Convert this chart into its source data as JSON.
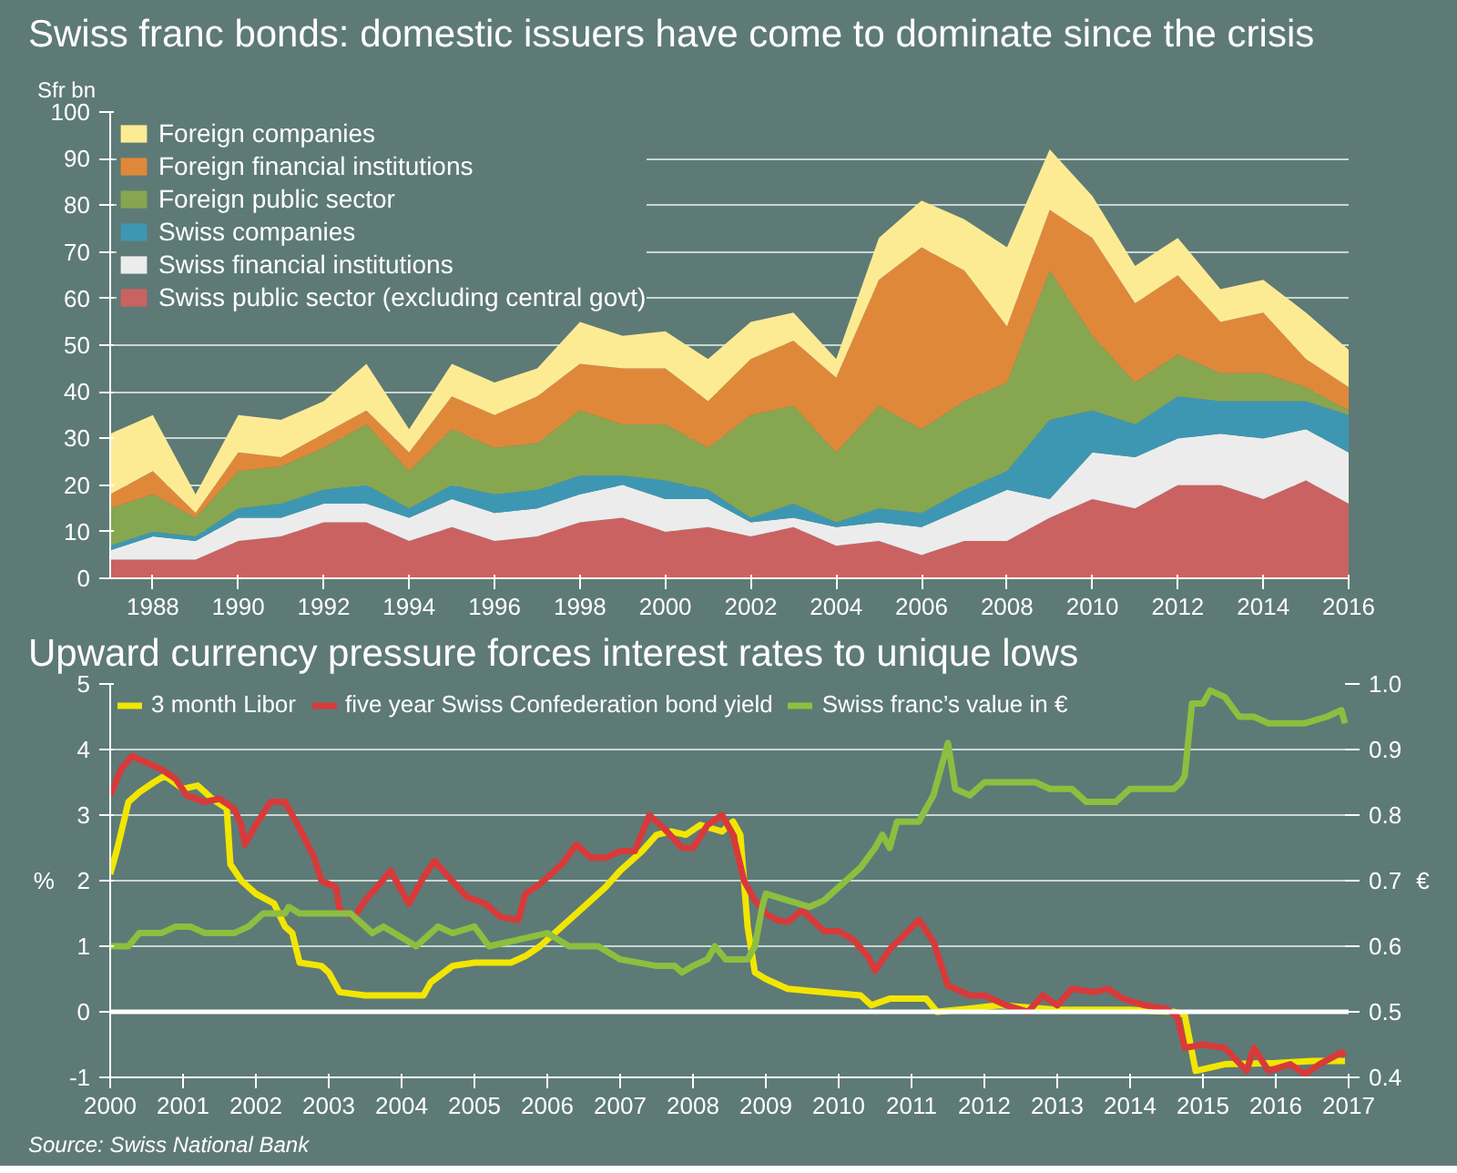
{
  "chart_data": [
    {
      "type": "area",
      "title": "Swiss franc bonds: domestic issuers have come to dominate since the crisis",
      "ylabel": "Sfr bn",
      "stacked": true,
      "x": [
        1987,
        1988,
        1989,
        1990,
        1991,
        1992,
        1993,
        1994,
        1995,
        1996,
        1997,
        1998,
        1999,
        2000,
        2001,
        2002,
        2003,
        2004,
        2005,
        2006,
        2007,
        2008,
        2009,
        2010,
        2011,
        2012,
        2013,
        2014,
        2015,
        2016
      ],
      "xlim": [
        1987,
        2016
      ],
      "xticks": [
        1988,
        1990,
        1992,
        1994,
        1996,
        1998,
        2000,
        2002,
        2004,
        2006,
        2008,
        2010,
        2012,
        2014,
        2016
      ],
      "ylim": [
        0,
        100
      ],
      "yticks": [
        0,
        10,
        20,
        30,
        40,
        50,
        60,
        70,
        80,
        90,
        100
      ],
      "grid": "y",
      "legend": "top left",
      "series": [
        {
          "name": "Swiss public sector (excluding central govt)",
          "color": "#cb6262",
          "values": [
            4,
            4,
            4,
            8,
            9,
            12,
            12,
            8,
            11,
            8,
            9,
            12,
            13,
            10,
            11,
            9,
            11,
            7,
            8,
            5,
            8,
            8,
            13,
            17,
            15,
            20,
            20,
            17,
            21,
            16
          ]
        },
        {
          "name": "Swiss financial institutions",
          "color": "#ececec",
          "values": [
            2,
            5,
            4,
            5,
            4,
            4,
            4,
            5,
            6,
            6,
            6,
            6,
            7,
            7,
            6,
            3,
            2,
            4,
            4,
            6,
            7,
            11,
            4,
            10,
            11,
            10,
            11,
            13,
            11,
            11
          ]
        },
        {
          "name": "Swiss companies",
          "color": "#3d97b3",
          "values": [
            1,
            1,
            1,
            2,
            3,
            3,
            4,
            2,
            3,
            4,
            4,
            4,
            2,
            4,
            2,
            1,
            3,
            1,
            3,
            3,
            4,
            4,
            17,
            9,
            7,
            9,
            7,
            8,
            6,
            8
          ]
        },
        {
          "name": "Foreign public sector",
          "color": "#87a650",
          "values": [
            8,
            8,
            4,
            8,
            8,
            9,
            13,
            8,
            12,
            10,
            10,
            14,
            11,
            12,
            9,
            22,
            21,
            15,
            22,
            18,
            19,
            19,
            32,
            16,
            9,
            9,
            6,
            6,
            3,
            1
          ]
        },
        {
          "name": "Foreign financial institutions",
          "color": "#e0883a",
          "values": [
            3,
            5,
            1,
            4,
            2,
            3,
            3,
            4,
            7,
            7,
            10,
            10,
            12,
            12,
            10,
            12,
            14,
            16,
            27,
            39,
            28,
            12,
            13,
            21,
            17,
            17,
            11,
            13,
            6,
            5
          ]
        },
        {
          "name": "Foreign companies",
          "color": "#fdeb94",
          "values": [
            13,
            12,
            4,
            8,
            8,
            7,
            10,
            5,
            7,
            7,
            6,
            9,
            7,
            8,
            9,
            8,
            6,
            4,
            9,
            10,
            11,
            17,
            13,
            9,
            8,
            8,
            7,
            7,
            10,
            8
          ]
        }
      ]
    },
    {
      "type": "line",
      "title": "Upward currency pressure forces interest rates to unique lows",
      "ylabel": "%",
      "y2label": "€",
      "xlim": [
        2000,
        2017
      ],
      "xticks": [
        2000,
        2001,
        2002,
        2003,
        2004,
        2005,
        2006,
        2007,
        2008,
        2009,
        2010,
        2011,
        2012,
        2013,
        2014,
        2015,
        2016,
        2017
      ],
      "ylim": [
        -1,
        5
      ],
      "yticks": [
        -1,
        0,
        1,
        2,
        3,
        4,
        5
      ],
      "y2lim": [
        0.4,
        1.0
      ],
      "y2ticks": [
        0.4,
        0.5,
        0.6,
        0.7,
        0.8,
        0.9,
        {
          "value": 1.0,
          "label": "1.0"
        }
      ],
      "grid": "y",
      "legend": "top",
      "ref_lines": [
        {
          "axis": "y",
          "value": 0,
          "color": "#ffffff"
        }
      ],
      "annotations": [
        "Source: Swiss National Bank"
      ],
      "series": [
        {
          "name": "3 month Libor",
          "color": "#f2e600",
          "x": [
            2000.0,
            2000.1,
            2000.25,
            2000.4,
            2000.6,
            2000.75,
            2001.0,
            2001.2,
            2001.4,
            2001.6,
            2001.65,
            2001.8,
            2002.0,
            2002.25,
            2002.4,
            2002.5,
            2002.6,
            2002.9,
            2003.0,
            2003.15,
            2003.5,
            2004.0,
            2004.3,
            2004.4,
            2004.7,
            2005.0,
            2005.5,
            2005.7,
            2005.9,
            2006.1,
            2006.5,
            2006.8,
            2007.0,
            2007.3,
            2007.5,
            2007.7,
            2007.9,
            2008.1,
            2008.4,
            2008.55,
            2008.65,
            2008.75,
            2008.85,
            2009.0,
            2009.3,
            2009.8,
            2010.3,
            2010.45,
            2010.7,
            2011.2,
            2011.35,
            2011.8,
            2012.2,
            2013.0,
            2014.0,
            2014.6,
            2014.75,
            2014.9,
            2015.3,
            2016.0,
            2016.5,
            2016.95
          ],
          "values": [
            2.1,
            2.5,
            3.2,
            3.35,
            3.5,
            3.6,
            3.4,
            3.45,
            3.25,
            3.1,
            2.25,
            2.0,
            1.8,
            1.65,
            1.3,
            1.2,
            0.75,
            0.7,
            0.6,
            0.3,
            0.25,
            0.25,
            0.25,
            0.45,
            0.7,
            0.75,
            0.75,
            0.85,
            1.0,
            1.2,
            1.6,
            1.9,
            2.15,
            2.45,
            2.7,
            2.75,
            2.7,
            2.85,
            2.75,
            2.9,
            2.7,
            1.3,
            0.6,
            0.5,
            0.35,
            0.3,
            0.25,
            0.1,
            0.2,
            0.2,
            0.0,
            0.05,
            0.1,
            0.03,
            0.03,
            0.0,
            -0.05,
            -0.9,
            -0.8,
            -0.78,
            -0.75,
            -0.75
          ]
        },
        {
          "name": "five year Swiss Confederation bond yield",
          "color": "#d83a3a",
          "x": [
            2000.0,
            2000.15,
            2000.3,
            2000.5,
            2000.7,
            2000.9,
            2001.05,
            2001.3,
            2001.5,
            2001.7,
            2001.8,
            2001.85,
            2002.0,
            2002.2,
            2002.4,
            2002.6,
            2002.8,
            2002.9,
            2003.1,
            2003.15,
            2003.35,
            2003.5,
            2003.7,
            2003.85,
            2004.1,
            2004.3,
            2004.45,
            2004.65,
            2004.9,
            2005.15,
            2005.35,
            2005.6,
            2005.7,
            2005.9,
            2006.2,
            2006.4,
            2006.6,
            2006.8,
            2007.0,
            2007.2,
            2007.4,
            2007.6,
            2007.85,
            2008.0,
            2008.2,
            2008.4,
            2008.55,
            2008.7,
            2008.85,
            2009.0,
            2009.15,
            2009.3,
            2009.5,
            2009.8,
            2010.0,
            2010.2,
            2010.4,
            2010.5,
            2010.7,
            2010.9,
            2011.1,
            2011.3,
            2011.5,
            2011.8,
            2012.0,
            2012.3,
            2012.6,
            2012.8,
            2013.0,
            2013.2,
            2013.5,
            2013.7,
            2013.9,
            2014.2,
            2014.5,
            2014.65,
            2014.75,
            2015.0,
            2015.3,
            2015.6,
            2015.7,
            2015.9,
            2016.2,
            2016.4,
            2016.6,
            2016.9,
            2016.95
          ],
          "values": [
            3.3,
            3.7,
            3.9,
            3.8,
            3.7,
            3.55,
            3.3,
            3.2,
            3.25,
            3.1,
            2.85,
            2.55,
            2.85,
            3.2,
            3.2,
            2.8,
            2.35,
            2.0,
            1.9,
            1.55,
            1.45,
            1.7,
            1.95,
            2.15,
            1.65,
            2.05,
            2.3,
            2.05,
            1.75,
            1.65,
            1.45,
            1.4,
            1.8,
            1.95,
            2.25,
            2.55,
            2.35,
            2.35,
            2.45,
            2.45,
            3.0,
            2.8,
            2.5,
            2.5,
            2.85,
            3.0,
            2.7,
            2.0,
            1.7,
            1.5,
            1.4,
            1.37,
            1.55,
            1.23,
            1.23,
            1.1,
            0.85,
            0.63,
            0.95,
            1.17,
            1.4,
            1.07,
            0.4,
            0.25,
            0.25,
            0.1,
            0.0,
            0.25,
            0.1,
            0.35,
            0.3,
            0.35,
            0.2,
            0.1,
            0.05,
            -0.08,
            -0.55,
            -0.5,
            -0.55,
            -0.9,
            -0.55,
            -0.9,
            -0.8,
            -0.95,
            -0.8,
            -0.62,
            -0.67
          ]
        },
        {
          "name": "Swiss franc’s value in €",
          "color": "#8cbf3f",
          "axis": "y2",
          "x": [
            2000.0,
            2000.25,
            2000.4,
            2000.7,
            2000.9,
            2001.1,
            2001.3,
            2001.7,
            2001.9,
            2002.1,
            2002.4,
            2002.45,
            2002.6,
            2003.3,
            2003.5,
            2003.6,
            2003.75,
            2003.9,
            2004.2,
            2004.4,
            2004.5,
            2004.7,
            2005.0,
            2005.2,
            2005.6,
            2006.0,
            2006.3,
            2006.7,
            2007.0,
            2007.5,
            2007.75,
            2007.85,
            2008.0,
            2008.2,
            2008.3,
            2008.45,
            2008.75,
            2008.85,
            2008.95,
            2009.0,
            2009.3,
            2009.6,
            2009.8,
            2010.0,
            2010.3,
            2010.5,
            2010.6,
            2010.7,
            2010.8,
            2011.0,
            2011.1,
            2011.3,
            2011.5,
            2011.6,
            2011.8,
            2012.0,
            2012.3,
            2012.7,
            2012.9,
            2013.2,
            2013.4,
            2013.8,
            2014.0,
            2014.2,
            2014.4,
            2014.6,
            2014.7,
            2014.75,
            2014.85,
            2015.0,
            2015.1,
            2015.3,
            2015.5,
            2015.7,
            2015.9,
            2016.2,
            2016.4,
            2016.7,
            2016.9,
            2016.95
          ],
          "values": [
            0.6,
            0.6,
            0.62,
            0.62,
            0.63,
            0.63,
            0.62,
            0.62,
            0.63,
            0.65,
            0.65,
            0.66,
            0.65,
            0.65,
            0.63,
            0.62,
            0.63,
            0.62,
            0.6,
            0.62,
            0.63,
            0.62,
            0.63,
            0.6,
            0.61,
            0.62,
            0.6,
            0.6,
            0.58,
            0.57,
            0.57,
            0.56,
            0.57,
            0.58,
            0.6,
            0.58,
            0.58,
            0.6,
            0.66,
            0.68,
            0.67,
            0.66,
            0.67,
            0.69,
            0.72,
            0.75,
            0.77,
            0.75,
            0.79,
            0.79,
            0.79,
            0.83,
            0.91,
            0.84,
            0.83,
            0.85,
            0.85,
            0.85,
            0.84,
            0.84,
            0.82,
            0.82,
            0.84,
            0.84,
            0.84,
            0.84,
            0.85,
            0.86,
            0.97,
            0.97,
            0.99,
            0.98,
            0.95,
            0.95,
            0.94,
            0.94,
            0.94,
            0.95,
            0.96,
            0.94
          ]
        }
      ]
    }
  ]
}
